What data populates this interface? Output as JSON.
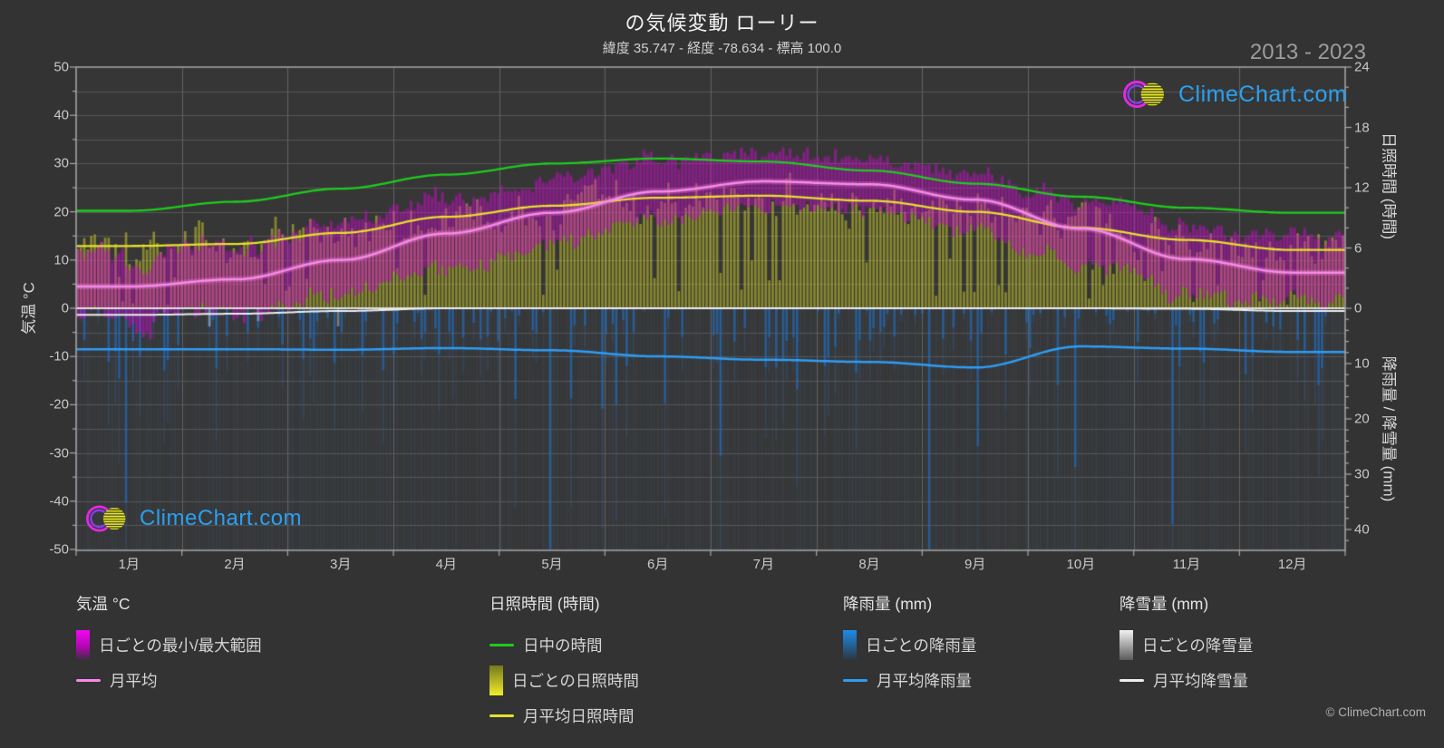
{
  "title": "の気候変動 ローリー",
  "subtitle": "緯度 35.747 - 経度 -78.634 - 標高 100.0",
  "period": "2013 - 2023",
  "watermark": {
    "text": "ClimeChart.com"
  },
  "copyright": "© ClimeChart.com",
  "axes": {
    "left_label": "気温 °C",
    "right_top_label": "日照時間 (時間)",
    "right_bottom_label": "降雨量 / 降雪量 (mm)",
    "temp_ticks": [
      50,
      40,
      30,
      20,
      10,
      0,
      -10,
      -20,
      -30,
      -40,
      -50
    ],
    "sun_ticks": [
      24,
      18,
      12,
      6,
      0
    ],
    "rain_ticks": [
      10,
      20,
      30,
      40
    ],
    "month_labels": [
      "1月",
      "2月",
      "3月",
      "4月",
      "5月",
      "6月",
      "7月",
      "8月",
      "9月",
      "10月",
      "11月",
      "12月"
    ]
  },
  "legend": {
    "sections": [
      {
        "title": "気温 °C",
        "items": [
          {
            "type": "gradient",
            "swatch": "temp-range",
            "label": "日ごとの最小/最大範囲"
          },
          {
            "type": "line",
            "swatch": "temp-mean",
            "label": "月平均"
          }
        ]
      },
      {
        "title": "日照時間 (時間)",
        "items": [
          {
            "type": "line",
            "swatch": "daylight",
            "label": "日中の時間"
          },
          {
            "type": "gradient",
            "swatch": "sunshine-daily",
            "label": "日ごとの日照時間"
          },
          {
            "type": "line",
            "swatch": "sunshine-mean",
            "label": "月平均日照時間"
          }
        ]
      },
      {
        "title": "降雨量 (mm)",
        "items": [
          {
            "type": "gradient",
            "swatch": "rain-daily",
            "label": "日ごとの降雨量"
          },
          {
            "type": "line",
            "swatch": "rain-mean",
            "label": "月平均降雨量"
          }
        ]
      },
      {
        "title": "降雪量 (mm)",
        "items": [
          {
            "type": "gradient",
            "swatch": "snow-daily",
            "label": "日ごとの降雪量"
          },
          {
            "type": "line",
            "swatch": "snow-mean",
            "label": "月平均降雪量"
          }
        ]
      }
    ]
  },
  "chart_data": {
    "type": "line",
    "title": "の気候変動 ローリー (2013 - 2023)",
    "x_months": [
      "1月",
      "2月",
      "3月",
      "4月",
      "5月",
      "6月",
      "7月",
      "8月",
      "9月",
      "10月",
      "11月",
      "12月"
    ],
    "axis_ranges": {
      "temp_c": [
        -50,
        50
      ],
      "sunshine_h": [
        0,
        24
      ],
      "precip_mm": [
        0,
        43.6
      ]
    },
    "series": [
      {
        "name": "日中の時間",
        "axis": "sunshine_h",
        "color": "#1ecc1e",
        "values": [
          9.7,
          10.6,
          11.9,
          13.3,
          14.4,
          14.9,
          14.6,
          13.7,
          12.4,
          11.1,
          10.0,
          9.5
        ]
      },
      {
        "name": "月平均日照時間",
        "axis": "sunshine_h",
        "color": "#e6df2e",
        "values": [
          6.2,
          6.4,
          7.5,
          9.1,
          10.2,
          11.0,
          11.2,
          10.7,
          9.6,
          8.0,
          6.8,
          5.8
        ]
      },
      {
        "name": "月平均",
        "axis": "temp_c",
        "color": "#f78ae8",
        "values": [
          4.5,
          6.0,
          10.0,
          15.5,
          19.8,
          24.2,
          26.3,
          25.7,
          22.5,
          16.5,
          10.2,
          7.4
        ]
      },
      {
        "name": "月平均降雨量",
        "axis": "precip_mm",
        "color": "#2e9df5",
        "values": [
          7.4,
          7.4,
          7.5,
          7.2,
          7.6,
          8.7,
          9.3,
          9.7,
          10.7,
          6.9,
          7.3,
          7.9
        ]
      },
      {
        "name": "月平均降雪量",
        "axis": "precip_mm",
        "color": "#ededed",
        "values": [
          1.2,
          1.0,
          0.5,
          0,
          0,
          0,
          0,
          0,
          0,
          0,
          0.1,
          0.5
        ]
      }
    ],
    "daily_envelopes": {
      "tmax_mean_c": [
        11,
        13,
        17.5,
        22.5,
        26.5,
        30.5,
        32,
        31,
        28,
        22.5,
        17.5,
        13
      ],
      "tmin_mean_c": [
        -1.5,
        -0.5,
        3,
        8,
        13.5,
        18.5,
        21,
        20.5,
        16.5,
        9.5,
        3.5,
        0.5
      ],
      "temp_noise_amp": [
        6,
        6,
        5.5,
        4.5,
        3.5,
        2.5,
        2,
        2,
        2.5,
        4,
        5,
        6
      ],
      "rain_prob": [
        0.42,
        0.42,
        0.45,
        0.42,
        0.45,
        0.48,
        0.5,
        0.5,
        0.45,
        0.4,
        0.4,
        0.42
      ],
      "rain_mean_mm": [
        5,
        5,
        5,
        5,
        5.5,
        6,
        7,
        7,
        8,
        5,
        5,
        5.5
      ],
      "snow_prob": [
        0.12,
        0.1,
        0.04,
        0,
        0,
        0,
        0,
        0,
        0,
        0,
        0.01,
        0.05
      ],
      "snow_max_mm": [
        14,
        12,
        8,
        0,
        0,
        0,
        0,
        0,
        0,
        0,
        4,
        8
      ]
    },
    "colors": {
      "background": "#333333",
      "plot_bg": "#363636",
      "grid": "#565656",
      "grid_month": "#626262",
      "axis": "#a8a8a8",
      "zero_line": "#e0e0e0",
      "temp_range_bar": "#d00cd0",
      "sunshine_bar": "#d7d728",
      "rain_bar": "#1c76d4",
      "rain_wash": "#4b698c",
      "snow_bar": "#e8e8ec",
      "daylight_line": "#1ecc1e",
      "sunshine_mean_line": "#e6df2e",
      "temp_mean_line": "#f78ae8",
      "rain_mean_line": "#2e9df5",
      "snow_mean_line": "#ededed",
      "logo_text": "#2aa0f0"
    }
  }
}
